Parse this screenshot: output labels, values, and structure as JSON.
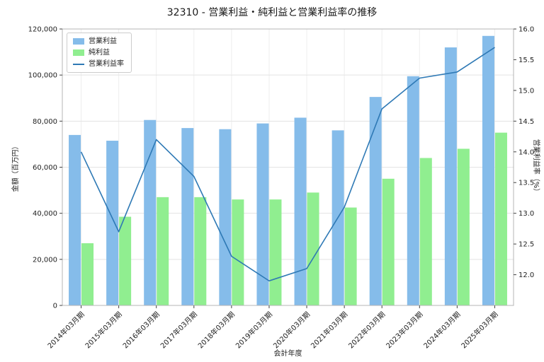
{
  "chart_data": {
    "type": "bar",
    "combo": "grouped bars (left axis) + line (right axis)",
    "title": "32310 - 営業利益・純利益と営業利益率の推移",
    "categories": [
      "2014年03月期",
      "2015年03月期",
      "2016年03月期",
      "2017年03月期",
      "2018年03月期",
      "2019年03月期",
      "2020年03月期",
      "2021年03月期",
      "2022年03月期",
      "2023年03月期",
      "2024年03月期",
      "2025年03月期"
    ],
    "series": [
      {
        "name": "営業利益",
        "slug": "operating-profit",
        "type": "bar",
        "axis": "left",
        "color": "#85BCEA",
        "values": [
          74000,
          71500,
          80500,
          77000,
          76500,
          79000,
          81500,
          76000,
          90500,
          99500,
          112000,
          117000
        ]
      },
      {
        "name": "純利益",
        "slug": "net-profit",
        "type": "bar",
        "axis": "left",
        "color": "#90EE90",
        "values": [
          27000,
          38500,
          47000,
          47000,
          46000,
          46000,
          49000,
          42500,
          55000,
          64000,
          68000,
          75000
        ]
      },
      {
        "name": "営業利益率",
        "slug": "operating-margin",
        "type": "line",
        "axis": "right",
        "color": "#2E79B5",
        "values": [
          14.0,
          12.7,
          14.2,
          13.6,
          12.3,
          11.9,
          12.1,
          13.1,
          14.7,
          15.2,
          15.3,
          15.7
        ]
      }
    ],
    "xlabel": "会計年度",
    "ylabel_left": "金額（百万円）",
    "ylabel_right": "営業利益率（%）",
    "ylim_left": [
      0,
      120000
    ],
    "yticks_left": [
      0,
      20000,
      40000,
      60000,
      80000,
      100000,
      120000
    ],
    "ylim_right": [
      11.5,
      16.0
    ],
    "yticks_right": [
      12.0,
      12.5,
      13.0,
      13.5,
      14.0,
      14.5,
      15.0,
      15.5,
      16.0
    ],
    "grid": true,
    "legend_position": "upper left",
    "colors": {
      "grid": "#e3e3e3",
      "frame": "#b5b5b5",
      "tick": "#444444"
    }
  }
}
